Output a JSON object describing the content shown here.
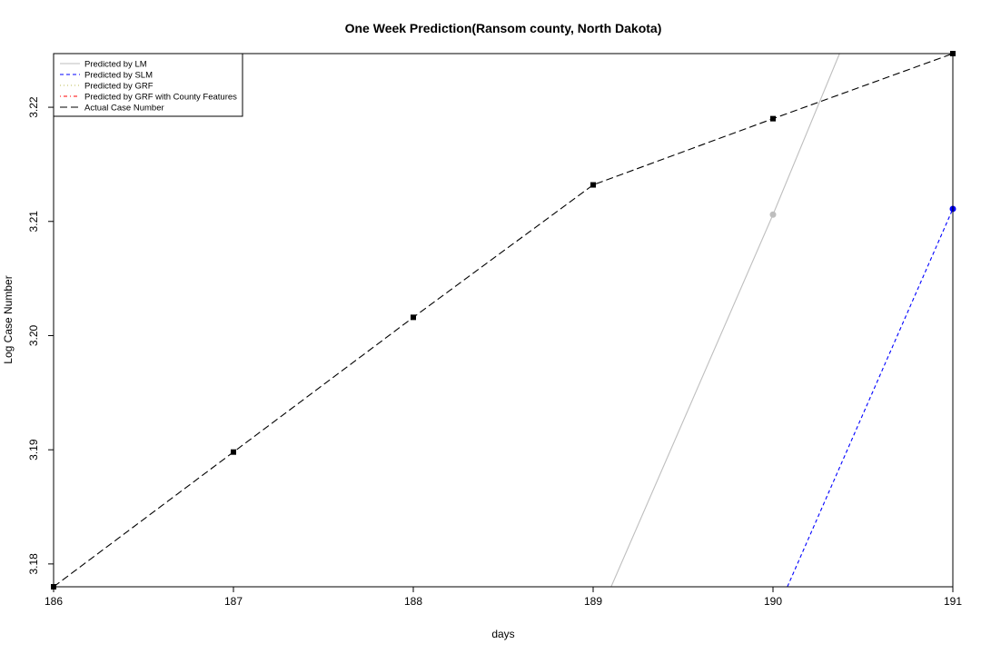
{
  "chart_data": {
    "type": "line",
    "title": "One Week Prediction(Ransom county, North Dakota)",
    "xlabel": "days",
    "ylabel": "Log Case Number",
    "xlim": [
      186,
      191
    ],
    "ylim": [
      3.178,
      3.2247
    ],
    "x_ticks": [
      "186",
      "187",
      "188",
      "189",
      "190",
      "191"
    ],
    "y_ticks": [
      "3.18",
      "3.19",
      "3.20",
      "3.21",
      "3.22"
    ],
    "legend_position": "top-left",
    "grid": false,
    "series": [
      {
        "name": "Predicted by LM",
        "color": "#bebebe",
        "dash": "solid",
        "marker": "circle",
        "points": [
          [
            189.1,
            3.178
          ],
          [
            190,
            3.2106
          ],
          [
            190.37,
            3.2247
          ]
        ],
        "marked_points": [
          [
            190,
            3.2106
          ]
        ]
      },
      {
        "name": "Predicted by SLM",
        "color": "#0000ff",
        "dash": "dashed",
        "marker": "circle",
        "points": [
          [
            190.08,
            3.178
          ],
          [
            191,
            3.2111
          ]
        ],
        "marked_points": [
          [
            191,
            3.2111
          ]
        ]
      },
      {
        "name": "Predicted by GRF",
        "color": "#bbbb55",
        "dash": "dotted",
        "marker": "none",
        "points": [],
        "marked_points": []
      },
      {
        "name": "Predicted by GRF with County Features",
        "color": "#ff0000",
        "dash": "dotdash",
        "marker": "none",
        "points": [],
        "marked_points": []
      },
      {
        "name": "Actual Case Number",
        "color": "#000000",
        "dash": "longdash",
        "marker": "square",
        "points": [
          [
            186,
            3.178
          ],
          [
            187,
            3.1898
          ],
          [
            188,
            3.2016
          ],
          [
            189,
            3.2132
          ],
          [
            190,
            3.219
          ],
          [
            191,
            3.2247
          ]
        ],
        "marked_points": [
          [
            186,
            3.178
          ],
          [
            187,
            3.1898
          ],
          [
            188,
            3.2016
          ],
          [
            189,
            3.2132
          ],
          [
            190,
            3.219
          ],
          [
            191,
            3.2247
          ]
        ]
      }
    ]
  }
}
